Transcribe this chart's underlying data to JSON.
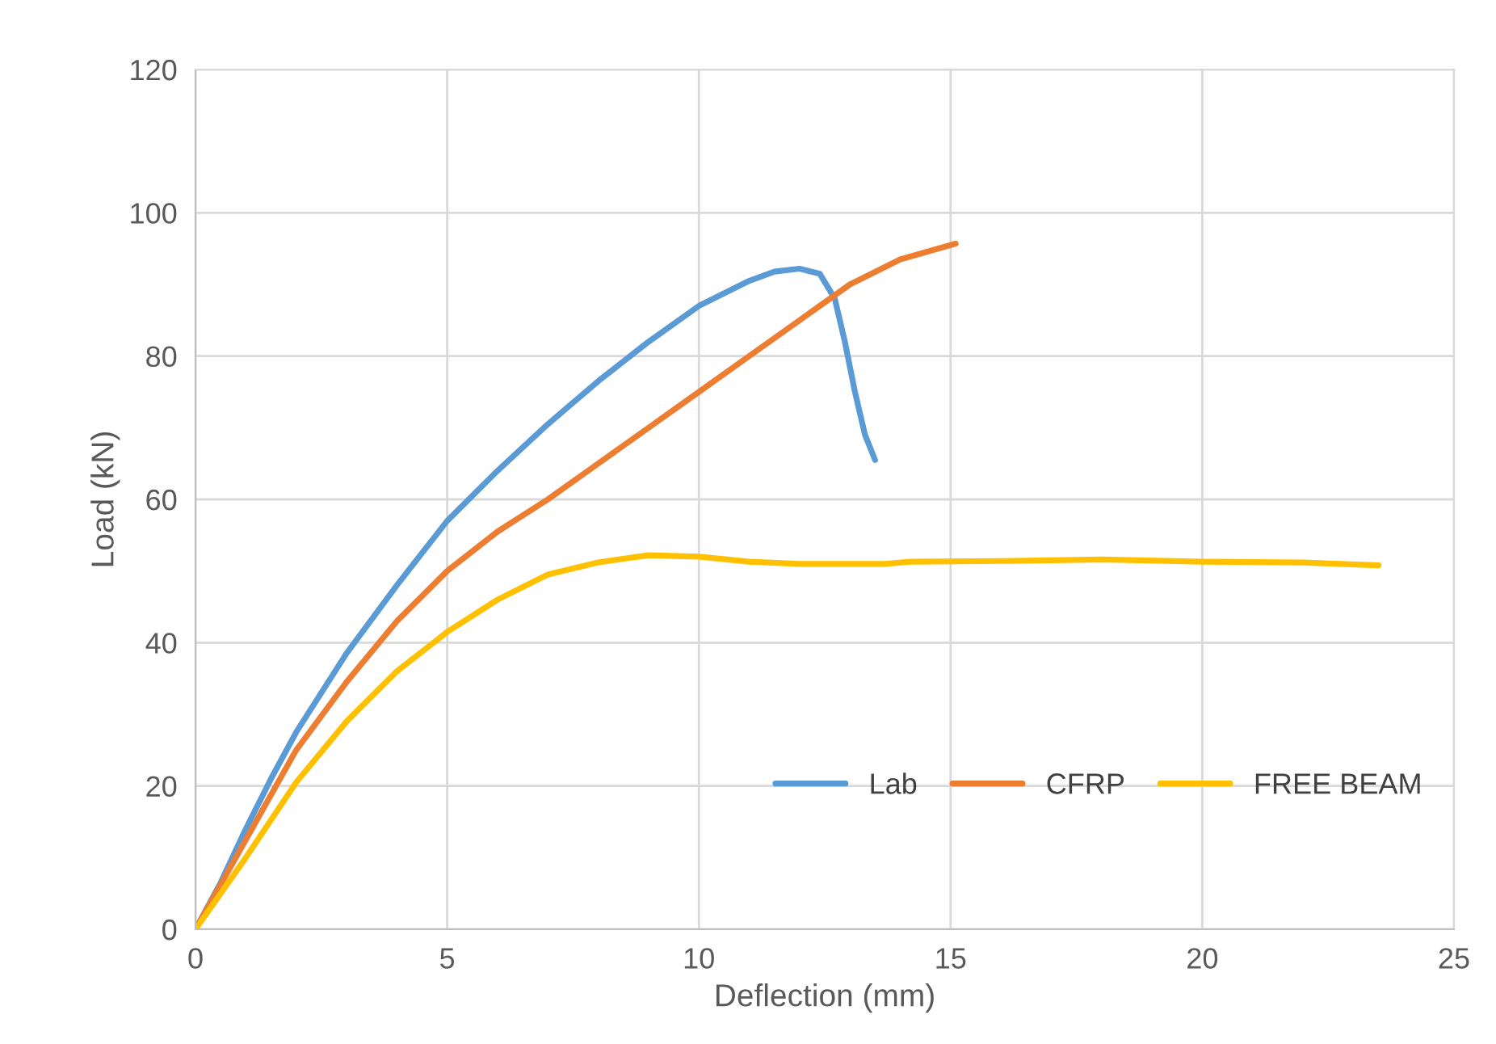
{
  "chart_data": {
    "type": "line",
    "xlabel": "Deflection (mm)",
    "ylabel": "Load (kN)",
    "xlim": [
      0,
      25
    ],
    "ylim": [
      0,
      120
    ],
    "xticks": [
      0,
      5,
      10,
      15,
      20,
      25
    ],
    "yticks": [
      0,
      20,
      40,
      60,
      80,
      100,
      120
    ],
    "grid": true,
    "legend": "bottom right",
    "marker": "none",
    "line_style": "solid",
    "series": [
      {
        "name": "Lab",
        "color": "#5b9bd5",
        "x": [
          0,
          0.5,
          1,
          1.5,
          2,
          2.5,
          3,
          4,
          5,
          6,
          7,
          8,
          9,
          10,
          11,
          11.5,
          12,
          12.4,
          12.7,
          12.9,
          13.1,
          13.3,
          13.5
        ],
        "values": [
          0,
          6.5,
          14,
          21,
          27.5,
          33,
          38.5,
          48,
          57,
          64,
          70.5,
          76.5,
          82,
          87,
          90.5,
          91.8,
          92.2,
          91.5,
          88,
          82,
          75,
          69,
          65.5
        ]
      },
      {
        "name": "CFRP",
        "color": "#ed7d31",
        "x": [
          0,
          1,
          2,
          3,
          4,
          5,
          6,
          7,
          8,
          9,
          10,
          11,
          12,
          13,
          14,
          15.1
        ],
        "values": [
          0,
          12.5,
          25,
          34.5,
          43,
          50,
          55.5,
          60,
          65,
          70,
          75,
          80,
          85,
          90,
          93.5,
          95.7
        ]
      },
      {
        "name": "FREE BEAM",
        "color": "#ffc000",
        "x": [
          0,
          1,
          2,
          3,
          4,
          5,
          6,
          7,
          8,
          9,
          10,
          11,
          12,
          13,
          13.7,
          14.2,
          16,
          18,
          20,
          22,
          23.5
        ],
        "values": [
          0,
          10,
          20.5,
          29,
          36,
          41.5,
          46,
          49.5,
          51.2,
          52.2,
          52,
          51.3,
          51,
          51,
          51,
          51.3,
          51.4,
          51.6,
          51.3,
          51.2,
          50.8
        ]
      }
    ]
  }
}
